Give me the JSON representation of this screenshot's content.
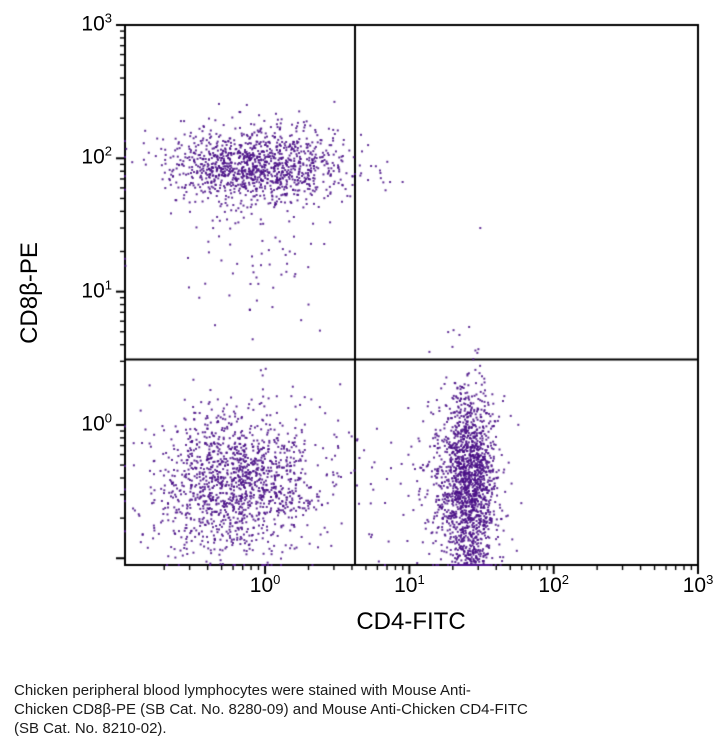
{
  "figure": {
    "caption": {
      "lines": [
        "Chicken peripheral blood lymphocytes were stained with Mouse Anti-",
        "Chicken CD8β-PE (SB Cat. No. 8280-09) and Mouse Anti-Chicken CD4-FITC",
        "(SB Cat. No. 8210-02)."
      ]
    }
  },
  "chart_data": {
    "type": "scatter",
    "title": "",
    "xlabel": "CD4-FITC",
    "ylabel": "CD8β-PE",
    "xscale": "log",
    "yscale": "log",
    "xlim": [
      0.107,
      1000
    ],
    "ylim": [
      0.089,
      1000
    ],
    "grid": false,
    "legend": false,
    "tick_base": "10",
    "x_tick_exponents": [
      0,
      1,
      2,
      3
    ],
    "y_tick_exponents": [
      0,
      1,
      2,
      3
    ],
    "quadrant_gate": {
      "x": 4.2,
      "y": 3.1
    },
    "style": {
      "point_color": "#4a1187",
      "point_size": 2,
      "point_alpha": 0.85,
      "axis_color": "#000000",
      "background": "#ffffff"
    },
    "populations": [
      {
        "name": "cd8b-positive-cd4-negative-core",
        "n": 1200,
        "x_log10_mean": -0.06,
        "x_log10_sd": 0.3,
        "y_log10_mean": 1.95,
        "y_log10_sd": 0.14
      },
      {
        "name": "cd8b-positive-scatter-tail",
        "n": 80,
        "x_log10_mean": -0.08,
        "x_log10_sd": 0.3,
        "y_log10_mean": 1.45,
        "y_log10_sd": 0.35
      },
      {
        "name": "double-negative",
        "n": 1400,
        "x_log10_mean": -0.2,
        "x_log10_sd": 0.28,
        "y_log10_mean": -0.42,
        "y_log10_sd": 0.27
      },
      {
        "name": "cd4-positive-core",
        "n": 1500,
        "x_log10_mean": 1.42,
        "x_log10_sd": 0.1,
        "y_log10_mean": -0.4,
        "y_log10_sd": 0.32
      },
      {
        "name": "cd4-positive-left-tail",
        "n": 130,
        "x_log10_mean": 1.27,
        "x_log10_sd": 0.14,
        "y_log10_mean": -0.4,
        "y_log10_sd": 0.3
      },
      {
        "name": "cd4-positive-bottom-edge-pile",
        "n": 160,
        "x_log10_mean": 1.42,
        "x_log10_sd": 0.07,
        "y_log10_mean": -1.02,
        "y_log10_sd": 0.12
      },
      {
        "name": "sparse-bridge-lower-middle",
        "n": 60,
        "x_log10_mean": 0.6,
        "x_log10_sd": 0.35,
        "y_log10_mean": -0.45,
        "y_log10_sd": 0.3
      }
    ],
    "outlier_points": [
      [
        6.6,
        66
      ],
      [
        31,
        30
      ],
      [
        2.4,
        5.1
      ],
      [
        0.45,
        5.6
      ],
      [
        5.5,
        0.15
      ],
      [
        1.6,
        13
      ],
      [
        0.35,
        9
      ],
      [
        2.0,
        8
      ]
    ],
    "seed": 7
  }
}
